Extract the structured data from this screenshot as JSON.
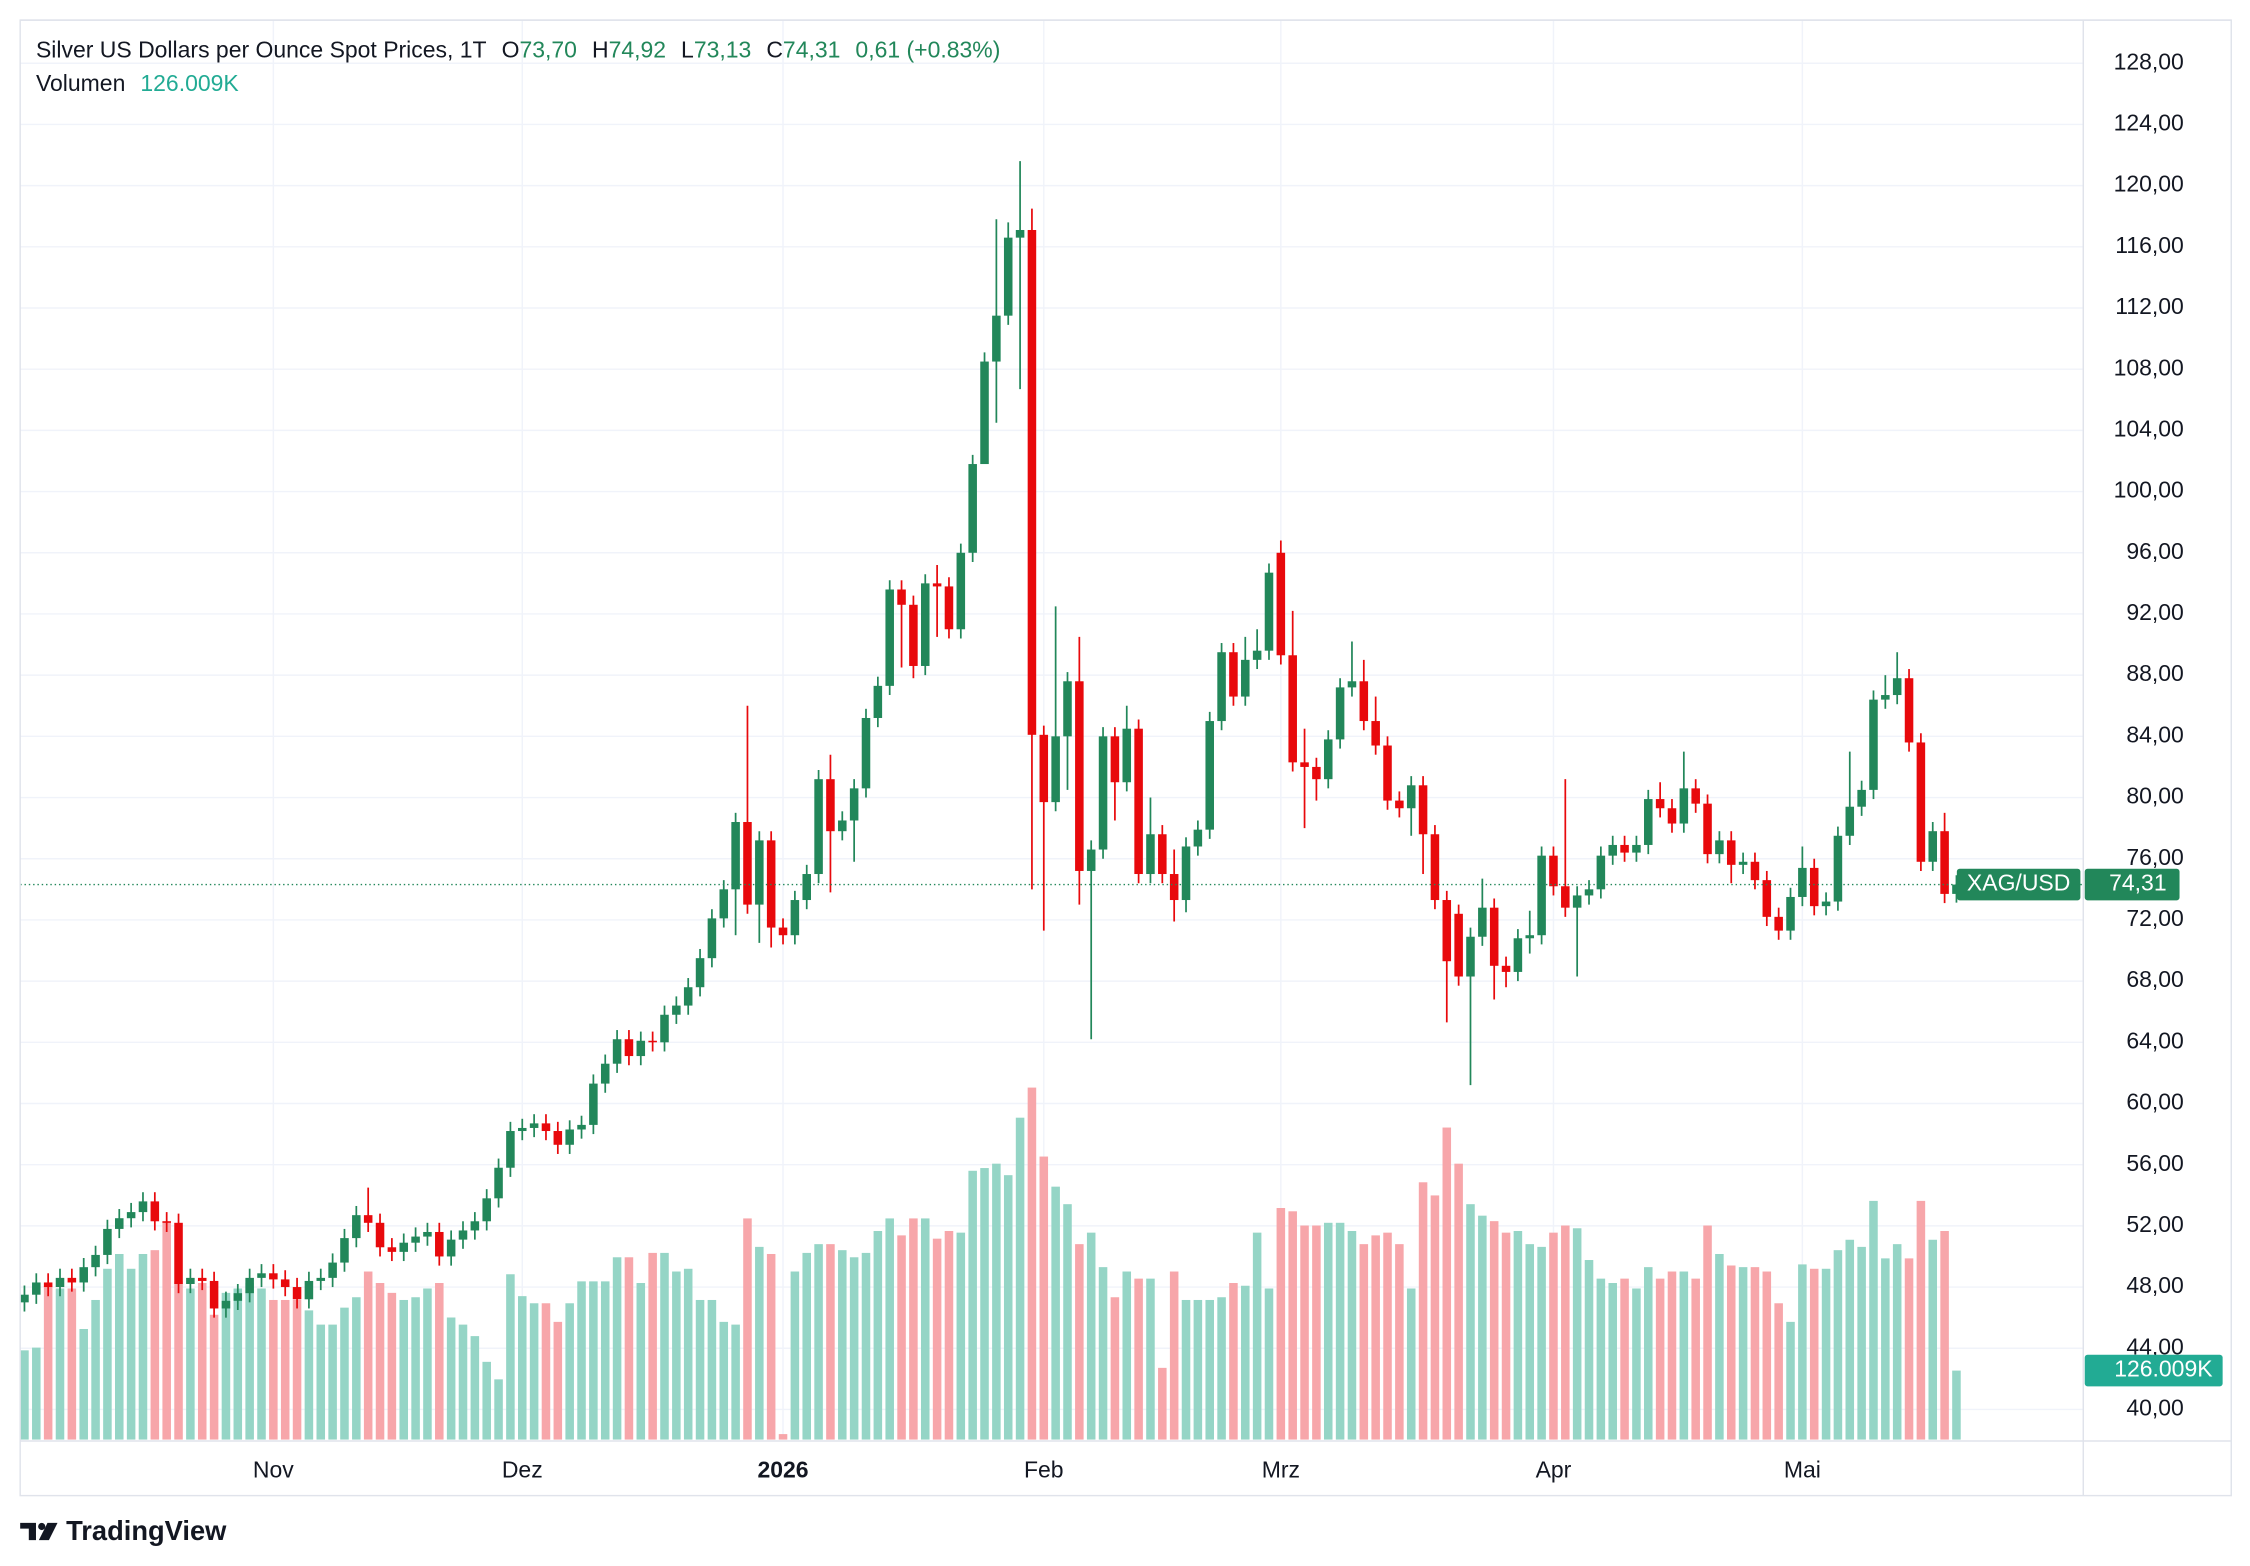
{
  "chart_data": {
    "type": "candlestick",
    "title": "Silver US Dollars per Ounce Spot Prices, 1T",
    "header": [
      {
        "key": "O",
        "value": "73,70"
      },
      {
        "key": "H",
        "value": "74,92"
      },
      {
        "key": "L",
        "value": "73,13"
      },
      {
        "key": "C",
        "value": "74,31"
      }
    ],
    "change": "0,61 (+0.83%)",
    "volume_title": "Volumen",
    "volume_label": "126.009K",
    "symbol": "XAG/USD",
    "branding": "TradingView",
    "up_color": "#22875a",
    "down_color": "#e8090c",
    "volume_up_color": "#95d5c6",
    "volume_down_color": "#f7a6aa",
    "grid": true,
    "open": [
      47.0,
      47.5,
      48.3,
      48.0,
      48.6,
      48.3,
      49.3,
      50.1,
      51.8,
      52.5,
      52.9,
      53.6,
      52.3,
      52.2,
      48.2,
      48.6,
      48.4,
      46.6,
      47.1,
      47.6,
      48.6,
      48.9,
      48.5,
      48.0,
      47.2,
      48.4,
      48.6,
      49.6,
      51.2,
      52.7,
      52.2,
      50.6,
      50.3,
      50.9,
      51.3,
      51.6,
      50.0,
      51.1,
      51.7,
      52.3,
      53.8,
      55.8,
      58.2,
      58.4,
      58.7,
      58.2,
      57.3,
      58.3,
      58.6,
      61.3,
      62.6,
      64.2,
      63.1,
      64.1,
      64.0,
      65.8,
      66.4,
      67.6,
      69.5,
      72.1,
      74.0,
      78.4,
      73.0,
      77.2,
      71.5,
      71.0,
      73.3,
      75.0,
      81.2,
      77.8,
      78.5,
      80.6,
      85.2,
      87.3,
      93.6,
      92.6,
      88.6,
      94.0,
      93.8,
      91.0,
      96.0,
      101.8,
      108.5,
      111.5,
      116.6,
      117.1,
      84.1,
      79.7,
      84.0,
      87.6,
      75.2,
      76.6,
      84.0,
      81.0,
      84.5,
      75.0,
      77.6,
      75.0,
      73.3,
      76.8,
      77.9,
      85.0,
      89.5,
      86.6,
      89.0,
      89.6,
      96.0,
      89.3,
      82.3,
      82.0,
      81.2,
      83.8,
      87.2,
      87.6,
      85.0,
      83.4,
      79.8,
      79.3,
      80.8,
      77.6,
      73.3,
      72.4,
      68.3,
      70.9,
      72.8,
      69.0,
      68.6,
      70.8,
      71.0,
      76.2,
      74.2,
      72.8,
      73.6,
      74.0,
      76.2,
      76.9,
      76.4,
      76.9,
      79.9,
      79.3,
      78.3,
      80.6,
      79.6,
      76.3,
      77.2,
      75.6,
      75.8,
      74.6,
      72.2,
      71.3,
      73.5,
      75.4,
      72.9,
      73.2,
      77.5,
      79.4,
      80.5,
      86.4,
      86.7,
      87.8,
      83.6,
      75.8,
      77.8,
      73.7
    ],
    "high": [
      48.1,
      48.9,
      48.9,
      49.2,
      49.2,
      49.9,
      50.7,
      52.4,
      53.1,
      53.5,
      54.2,
      54.2,
      52.9,
      52.8,
      49.2,
      49.2,
      49.0,
      47.7,
      48.2,
      49.2,
      49.5,
      49.5,
      49.1,
      48.6,
      49.0,
      49.2,
      50.2,
      51.8,
      53.3,
      54.5,
      52.8,
      51.2,
      51.5,
      51.9,
      52.2,
      52.2,
      51.7,
      52.3,
      52.9,
      54.4,
      56.4,
      58.8,
      59.0,
      59.3,
      59.3,
      58.8,
      58.9,
      59.2,
      61.9,
      63.2,
      64.8,
      64.8,
      64.7,
      64.7,
      66.4,
      67.0,
      68.2,
      70.1,
      72.7,
      74.6,
      79.0,
      86.0,
      77.8,
      77.8,
      72.1,
      73.9,
      75.6,
      81.8,
      82.8,
      79.1,
      81.2,
      85.8,
      87.9,
      94.2,
      94.2,
      93.2,
      94.6,
      95.2,
      94.4,
      96.6,
      102.4,
      109.1,
      117.8,
      117.6,
      121.6,
      118.5,
      84.7,
      92.5,
      88.2,
      90.5,
      77.2,
      84.6,
      84.6,
      86.0,
      85.1,
      80.0,
      78.2,
      76.6,
      77.4,
      78.5,
      85.6,
      90.1,
      90.1,
      90.5,
      91.0,
      95.3,
      96.8,
      92.2,
      84.5,
      82.6,
      84.4,
      87.8,
      90.2,
      89.0,
      86.6,
      84.0,
      80.4,
      81.4,
      81.4,
      78.2,
      73.9,
      73.0,
      71.5,
      74.7,
      73.4,
      69.6,
      71.4,
      72.6,
      76.8,
      76.8,
      81.2,
      74.2,
      74.6,
      76.8,
      77.5,
      77.5,
      77.5,
      80.5,
      81.0,
      79.9,
      83.0,
      81.2,
      80.2,
      77.8,
      77.8,
      76.4,
      76.4,
      75.2,
      72.8,
      74.1,
      76.8,
      76.0,
      73.8,
      78.1,
      83.0,
      81.1,
      87.0,
      88.0,
      89.5,
      88.4,
      84.2,
      78.4,
      79.0,
      74.92
    ],
    "low": [
      46.4,
      46.9,
      47.4,
      47.4,
      47.7,
      47.7,
      48.7,
      49.5,
      51.2,
      51.9,
      52.3,
      51.7,
      51.6,
      47.6,
      47.6,
      47.8,
      46.0,
      46.0,
      46.5,
      47.0,
      48.0,
      47.9,
      47.4,
      46.6,
      46.6,
      47.8,
      48.0,
      49.0,
      50.6,
      51.6,
      50.0,
      49.7,
      49.7,
      50.3,
      50.7,
      49.4,
      49.4,
      50.5,
      51.1,
      51.7,
      53.2,
      55.2,
      57.6,
      57.8,
      57.6,
      56.7,
      56.7,
      57.7,
      58.0,
      60.7,
      62.0,
      62.5,
      62.5,
      63.4,
      63.4,
      65.2,
      65.8,
      67.0,
      68.9,
      71.5,
      71.0,
      72.4,
      70.5,
      70.2,
      70.4,
      70.4,
      72.7,
      74.4,
      73.8,
      77.2,
      75.8,
      80.0,
      84.6,
      86.7,
      88.5,
      87.8,
      88.0,
      90.5,
      90.4,
      90.4,
      95.4,
      102.5,
      104.5,
      110.9,
      106.7,
      74.0,
      71.3,
      79.1,
      80.5,
      73.0,
      64.2,
      76.0,
      78.5,
      80.4,
      74.4,
      74.4,
      74.4,
      71.9,
      72.5,
      76.2,
      77.3,
      84.4,
      86.0,
      86.0,
      88.4,
      89.0,
      88.7,
      81.7,
      78.0,
      79.8,
      80.6,
      83.2,
      86.6,
      84.4,
      82.8,
      79.2,
      78.7,
      77.5,
      75.0,
      72.7,
      65.3,
      67.7,
      61.2,
      70.3,
      66.8,
      67.6,
      68.0,
      69.8,
      70.4,
      73.6,
      72.2,
      68.3,
      73.0,
      73.4,
      75.6,
      75.8,
      75.8,
      76.3,
      78.7,
      77.7,
      77.7,
      79.0,
      75.7,
      75.7,
      74.4,
      75.0,
      74.0,
      71.6,
      70.7,
      70.7,
      72.9,
      72.3,
      72.3,
      72.6,
      76.9,
      78.8,
      79.9,
      85.8,
      86.1,
      83.0,
      75.2,
      75.2,
      73.1,
      73.13
    ],
    "close": [
      47.5,
      48.3,
      48.0,
      48.6,
      48.3,
      49.3,
      50.1,
      51.8,
      52.5,
      52.9,
      53.6,
      52.3,
      52.2,
      48.2,
      48.6,
      48.4,
      46.6,
      47.1,
      47.6,
      48.6,
      48.9,
      48.5,
      48.0,
      47.2,
      48.4,
      48.6,
      49.6,
      51.2,
      52.7,
      52.2,
      50.6,
      50.3,
      50.9,
      51.3,
      51.6,
      50.0,
      51.1,
      51.7,
      52.3,
      53.8,
      55.8,
      58.2,
      58.4,
      58.7,
      58.2,
      57.3,
      58.3,
      58.6,
      61.3,
      62.6,
      64.2,
      63.1,
      64.1,
      64.0,
      65.8,
      66.4,
      67.6,
      69.5,
      72.1,
      74.0,
      78.4,
      73.0,
      77.2,
      71.5,
      71.0,
      73.3,
      75.0,
      81.2,
      77.8,
      78.5,
      80.6,
      85.2,
      87.3,
      93.6,
      92.6,
      88.6,
      94.0,
      93.8,
      91.0,
      96.0,
      101.8,
      108.5,
      111.5,
      116.6,
      117.1,
      84.1,
      79.7,
      84.0,
      87.6,
      75.2,
      76.6,
      84.0,
      81.0,
      84.5,
      75.0,
      77.6,
      75.0,
      73.3,
      76.8,
      77.9,
      85.0,
      89.5,
      86.6,
      89.0,
      89.6,
      94.7,
      89.3,
      82.3,
      82.0,
      81.2,
      83.8,
      87.2,
      87.6,
      85.0,
      83.4,
      79.8,
      79.3,
      80.8,
      77.6,
      73.3,
      69.3,
      68.3,
      70.9,
      72.8,
      69.0,
      68.6,
      70.8,
      71.0,
      76.2,
      74.2,
      72.8,
      73.6,
      74.0,
      76.2,
      76.9,
      76.4,
      76.9,
      79.9,
      79.3,
      78.3,
      80.6,
      79.6,
      76.3,
      77.2,
      75.6,
      75.8,
      74.6,
      72.2,
      71.3,
      73.5,
      75.4,
      72.9,
      73.2,
      77.5,
      79.4,
      80.5,
      86.4,
      86.7,
      87.8,
      83.6,
      75.8,
      77.8,
      73.7,
      74.31
    ],
    "volume": [
      163,
      168,
      281,
      276,
      276,
      202,
      255,
      312,
      339,
      312,
      339,
      346,
      399,
      289,
      276,
      286,
      228,
      268,
      276,
      286,
      276,
      255,
      255,
      255,
      236,
      210,
      210,
      241,
      260,
      307,
      286,
      268,
      255,
      260,
      276,
      286,
      223,
      210,
      189,
      142,
      110,
      302,
      262,
      249,
      249,
      215,
      249,
      289,
      289,
      289,
      333,
      333,
      286,
      341,
      341,
      307,
      312,
      255,
      255,
      215,
      210,
      404,
      352,
      339,
      10,
      307,
      341,
      357,
      357,
      346,
      333,
      341,
      381,
      404,
      373,
      404,
      404,
      367,
      381,
      378,
      491,
      496,
      504,
      483,
      588,
      643,
      517,
      462,
      430,
      357,
      378,
      315,
      260,
      307,
      294,
      294,
      131,
      307,
      255,
      255,
      255,
      260,
      286,
      281,
      378,
      276,
      423,
      417,
      391,
      391,
      396,
      396,
      381,
      357,
      373,
      378,
      357,
      276,
      470,
      446,
      570,
      504,
      430,
      409,
      399,
      378,
      381,
      357,
      352,
      378,
      391,
      386,
      328,
      294,
      286,
      294,
      276,
      315,
      294,
      307,
      307,
      294,
      391,
      339,
      318,
      315,
      315,
      307,
      249,
      215,
      320,
      312,
      312,
      346,
      365,
      352,
      436,
      331,
      357,
      331,
      436,
      365,
      381,
      126.009
    ],
    "xlim": [
      -0.36,
      173.7
    ],
    "xticks": [
      {
        "value": 21,
        "label": "Nov"
      },
      {
        "value": 42,
        "label": "Dez"
      },
      {
        "value": 64,
        "label": "2026"
      },
      {
        "value": 86,
        "label": "Feb"
      },
      {
        "value": 106,
        "label": "Mrz"
      },
      {
        "value": 129,
        "label": "Apr"
      },
      {
        "value": 150,
        "label": "Mai"
      }
    ],
    "ylim": [
      38.03,
      130.82
    ],
    "yticks": [
      {
        "value": 40,
        "label": "40,00"
      },
      {
        "value": 44,
        "label": "44,00"
      },
      {
        "value": 48,
        "label": "48,00"
      },
      {
        "value": 52,
        "label": "52,00"
      },
      {
        "value": 56,
        "label": "56,00"
      },
      {
        "value": 60,
        "label": "60,00"
      },
      {
        "value": 64,
        "label": "64,00"
      },
      {
        "value": 68,
        "label": "68,00"
      },
      {
        "value": 72,
        "label": "72,00"
      },
      {
        "value": 76,
        "label": "76,00"
      },
      {
        "value": 80,
        "label": "80,00"
      },
      {
        "value": 84,
        "label": "84,00"
      },
      {
        "value": 88,
        "label": "88,00"
      },
      {
        "value": 92,
        "label": "92,00"
      },
      {
        "value": 96,
        "label": "96,00"
      },
      {
        "value": 100,
        "label": "100,00"
      },
      {
        "value": 104,
        "label": "104,00"
      },
      {
        "value": 108,
        "label": "108,00"
      },
      {
        "value": 112,
        "label": "112,00"
      },
      {
        "value": 116,
        "label": "116,00"
      },
      {
        "value": 120,
        "label": "120,00"
      },
      {
        "value": 124,
        "label": "124,00"
      },
      {
        "value": 128,
        "label": "128,00"
      }
    ],
    "y2lim": [
      0,
      2593
    ]
  }
}
